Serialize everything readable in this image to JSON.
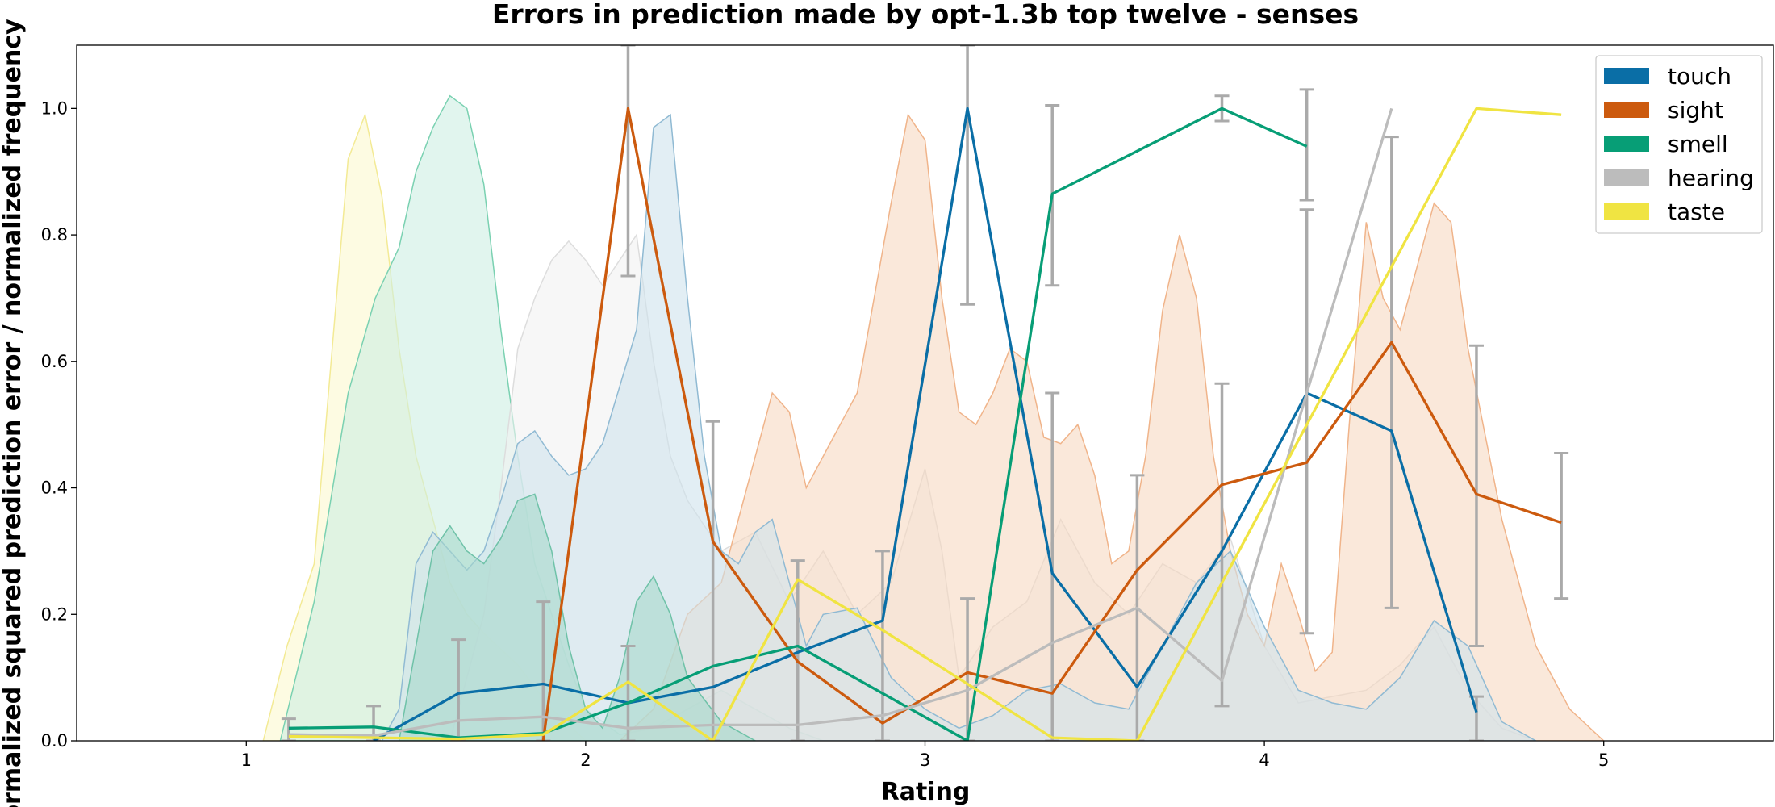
{
  "chart_data": {
    "type": "line",
    "title": "Errors in prediction made by opt-1.3b top twelve - senses",
    "xlabel": "Rating",
    "ylabel": "Normalized squared prediction error / normalized frequency",
    "xlim": [
      0.5,
      5.5
    ],
    "ylim": [
      0,
      1.1
    ],
    "xticks": [
      "1",
      "2",
      "3",
      "4",
      "5"
    ],
    "yticks": [
      "0.0",
      "0.2",
      "0.4",
      "0.6",
      "0.8",
      "1.0"
    ],
    "legend_position": "top-right",
    "grid": false,
    "series": [
      {
        "name": "touch",
        "color": "#0a6ea6",
        "x": [
          1.375,
          1.625,
          1.875,
          2.125,
          2.375,
          2.625,
          2.875,
          3.125,
          3.375,
          3.625,
          3.875,
          4.125,
          4.375,
          4.625
        ],
        "y": [
          0.0,
          0.075,
          0.09,
          0.06,
          0.085,
          0.14,
          0.19,
          1.0,
          0.265,
          0.085,
          0.3,
          0.55,
          0.49,
          0.045
        ]
      },
      {
        "name": "sight",
        "color": "#cc5a0e",
        "x": [
          1.875,
          2.125,
          2.375,
          2.625,
          2.875,
          3.125,
          3.375,
          3.625,
          3.875,
          4.125,
          4.375,
          4.625,
          4.875
        ],
        "y": [
          0.0,
          1.0,
          0.315,
          0.125,
          0.028,
          0.108,
          0.075,
          0.27,
          0.405,
          0.44,
          0.63,
          0.39,
          0.345
        ]
      },
      {
        "name": "smell",
        "color": "#079e76",
        "x": [
          1.125,
          1.375,
          1.625,
          1.875,
          2.125,
          2.375,
          2.625,
          2.875,
          3.125,
          3.375,
          3.875,
          4.125
        ],
        "y": [
          0.02,
          0.022,
          0.005,
          0.012,
          0.06,
          0.118,
          0.15,
          0.075,
          0.0,
          0.865,
          1.0,
          0.94
        ]
      },
      {
        "name": "hearing",
        "color": "#bcbcbc",
        "x": [
          1.125,
          1.375,
          1.625,
          1.875,
          2.125,
          2.375,
          2.625,
          2.875,
          3.125,
          3.375,
          3.625,
          3.875,
          4.125,
          4.375
        ],
        "y": [
          0.01,
          0.008,
          0.032,
          0.038,
          0.02,
          0.025,
          0.025,
          0.04,
          0.08,
          0.155,
          0.21,
          0.095,
          0.55,
          1.0
        ]
      },
      {
        "name": "taste",
        "color": "#f0e442",
        "x": [
          1.125,
          1.375,
          1.625,
          1.875,
          2.125,
          2.375,
          2.625,
          2.875,
          3.125,
          3.375,
          3.625,
          3.875,
          4.125,
          4.375,
          4.625,
          4.875
        ],
        "y": [
          0.007,
          0.005,
          0.003,
          0.01,
          0.093,
          0.0,
          0.255,
          0.175,
          0.09,
          0.005,
          0.0,
          0.25,
          0.5,
          0.75,
          1.0,
          0.99
        ]
      }
    ],
    "error_bars": {
      "color": "#aaaaaa",
      "items": [
        {
          "x": 1.125,
          "low": 0.0,
          "high": 0.035
        },
        {
          "x": 1.375,
          "low": 0.0,
          "high": 0.055
        },
        {
          "x": 1.625,
          "low": 0.0,
          "high": 0.16
        },
        {
          "x": 1.875,
          "low": 0.0,
          "high": 0.22
        },
        {
          "x": 2.125,
          "low": 0.0,
          "high": 0.15
        },
        {
          "x": 2.125,
          "low": 0.735,
          "high": 1.1
        },
        {
          "x": 2.375,
          "low": 0.0,
          "high": 0.505
        },
        {
          "x": 2.625,
          "low": 0.0,
          "high": 0.285
        },
        {
          "x": 2.875,
          "low": 0.0,
          "high": 0.3
        },
        {
          "x": 3.125,
          "low": 0.0,
          "high": 0.225
        },
        {
          "x": 3.125,
          "low": 0.69,
          "high": 1.1
        },
        {
          "x": 3.375,
          "low": 0.72,
          "high": 1.005
        },
        {
          "x": 3.375,
          "low": 0.0,
          "high": 0.55
        },
        {
          "x": 3.625,
          "low": 0.0,
          "high": 0.42
        },
        {
          "x": 3.875,
          "low": 0.98,
          "high": 1.02
        },
        {
          "x": 3.875,
          "low": 0.055,
          "high": 0.565
        },
        {
          "x": 4.125,
          "low": 0.855,
          "high": 1.03
        },
        {
          "x": 4.125,
          "low": 0.17,
          "high": 0.84
        },
        {
          "x": 4.375,
          "low": 0.21,
          "high": 0.955
        },
        {
          "x": 4.625,
          "low": 0.15,
          "high": 0.625
        },
        {
          "x": 4.625,
          "low": 0.0,
          "high": 0.07
        },
        {
          "x": 4.875,
          "low": 0.225,
          "high": 0.455
        }
      ]
    },
    "distributions": [
      {
        "name": "taste",
        "fill": "#fbf9cf",
        "edge": "#f3ea95",
        "points": [
          [
            1.05,
            0
          ],
          [
            1.12,
            0.15
          ],
          [
            1.2,
            0.28
          ],
          [
            1.25,
            0.6
          ],
          [
            1.3,
            0.92
          ],
          [
            1.35,
            0.99
          ],
          [
            1.4,
            0.86
          ],
          [
            1.45,
            0.62
          ],
          [
            1.5,
            0.45
          ],
          [
            1.55,
            0.35
          ],
          [
            1.6,
            0.25
          ],
          [
            1.65,
            0.2
          ],
          [
            1.7,
            0.17
          ],
          [
            1.8,
            0.12
          ],
          [
            1.9,
            0.05
          ],
          [
            2.0,
            0
          ]
        ]
      },
      {
        "name": "smell",
        "fill": "#cdeee3",
        "edge": "#7ad1b1",
        "points": [
          [
            1.1,
            0
          ],
          [
            1.2,
            0.22
          ],
          [
            1.3,
            0.55
          ],
          [
            1.38,
            0.7
          ],
          [
            1.45,
            0.78
          ],
          [
            1.5,
            0.9
          ],
          [
            1.55,
            0.97
          ],
          [
            1.6,
            1.02
          ],
          [
            1.65,
            1.0
          ],
          [
            1.7,
            0.88
          ],
          [
            1.75,
            0.65
          ],
          [
            1.8,
            0.45
          ],
          [
            1.85,
            0.28
          ],
          [
            1.9,
            0.2
          ],
          [
            1.95,
            0.12
          ],
          [
            2.0,
            0.05
          ],
          [
            2.1,
            0.01
          ],
          [
            2.2,
            0.02
          ],
          [
            2.3,
            0.05
          ],
          [
            2.4,
            0.08
          ],
          [
            2.5,
            0.05
          ],
          [
            2.6,
            0.02
          ],
          [
            2.7,
            0
          ]
        ]
      },
      {
        "name": "hearing",
        "fill": "#f1f1f1",
        "edge": "#dddddd",
        "points": [
          [
            1.6,
            0
          ],
          [
            1.7,
            0.2
          ],
          [
            1.75,
            0.4
          ],
          [
            1.8,
            0.62
          ],
          [
            1.85,
            0.7
          ],
          [
            1.9,
            0.76
          ],
          [
            1.95,
            0.79
          ],
          [
            2.0,
            0.76
          ],
          [
            2.05,
            0.72
          ],
          [
            2.1,
            0.76
          ],
          [
            2.15,
            0.8
          ],
          [
            2.2,
            0.6
          ],
          [
            2.25,
            0.45
          ],
          [
            2.3,
            0.38
          ],
          [
            2.4,
            0.3
          ],
          [
            2.5,
            0.33
          ],
          [
            2.6,
            0.22
          ],
          [
            2.7,
            0.3
          ],
          [
            2.8,
            0.2
          ],
          [
            2.9,
            0.25
          ],
          [
            3.0,
            0.43
          ],
          [
            3.05,
            0.3
          ],
          [
            3.1,
            0.1
          ],
          [
            3.2,
            0.18
          ],
          [
            3.3,
            0.22
          ],
          [
            3.4,
            0.35
          ],
          [
            3.5,
            0.25
          ],
          [
            3.6,
            0.2
          ],
          [
            3.7,
            0.28
          ],
          [
            3.8,
            0.25
          ],
          [
            3.9,
            0.32
          ],
          [
            4.0,
            0.15
          ],
          [
            4.1,
            0.06
          ],
          [
            4.2,
            0.07
          ],
          [
            4.3,
            0.08
          ],
          [
            4.4,
            0.12
          ],
          [
            4.5,
            0.18
          ],
          [
            4.6,
            0.08
          ],
          [
            4.7,
            0.02
          ],
          [
            4.8,
            0
          ]
        ]
      },
      {
        "name": "sight",
        "fill": "#f7d9c2",
        "edge": "#f0b48a",
        "points": [
          [
            2.1,
            0
          ],
          [
            2.2,
            0.05
          ],
          [
            2.3,
            0.2
          ],
          [
            2.4,
            0.25
          ],
          [
            2.5,
            0.45
          ],
          [
            2.55,
            0.55
          ],
          [
            2.6,
            0.52
          ],
          [
            2.65,
            0.4
          ],
          [
            2.7,
            0.45
          ],
          [
            2.8,
            0.55
          ],
          [
            2.85,
            0.7
          ],
          [
            2.9,
            0.85
          ],
          [
            2.95,
            0.99
          ],
          [
            3.0,
            0.95
          ],
          [
            3.05,
            0.7
          ],
          [
            3.1,
            0.52
          ],
          [
            3.15,
            0.5
          ],
          [
            3.2,
            0.55
          ],
          [
            3.25,
            0.62
          ],
          [
            3.3,
            0.6
          ],
          [
            3.35,
            0.48
          ],
          [
            3.4,
            0.47
          ],
          [
            3.45,
            0.5
          ],
          [
            3.5,
            0.42
          ],
          [
            3.55,
            0.28
          ],
          [
            3.6,
            0.3
          ],
          [
            3.65,
            0.45
          ],
          [
            3.7,
            0.68
          ],
          [
            3.75,
            0.8
          ],
          [
            3.8,
            0.7
          ],
          [
            3.85,
            0.45
          ],
          [
            3.9,
            0.3
          ],
          [
            3.95,
            0.2
          ],
          [
            4.0,
            0.15
          ],
          [
            4.05,
            0.28
          ],
          [
            4.1,
            0.2
          ],
          [
            4.15,
            0.11
          ],
          [
            4.2,
            0.14
          ],
          [
            4.25,
            0.5
          ],
          [
            4.3,
            0.82
          ],
          [
            4.35,
            0.7
          ],
          [
            4.4,
            0.65
          ],
          [
            4.45,
            0.75
          ],
          [
            4.5,
            0.85
          ],
          [
            4.55,
            0.82
          ],
          [
            4.6,
            0.62
          ],
          [
            4.7,
            0.35
          ],
          [
            4.8,
            0.15
          ],
          [
            4.9,
            0.05
          ],
          [
            5.0,
            0
          ]
        ]
      },
      {
        "name": "touch",
        "fill": "#cfe2ec",
        "edge": "#90bad3",
        "points": [
          [
            1.4,
            0
          ],
          [
            1.45,
            0.05
          ],
          [
            1.5,
            0.28
          ],
          [
            1.55,
            0.33
          ],
          [
            1.6,
            0.3
          ],
          [
            1.65,
            0.27
          ],
          [
            1.7,
            0.3
          ],
          [
            1.75,
            0.38
          ],
          [
            1.8,
            0.47
          ],
          [
            1.85,
            0.49
          ],
          [
            1.9,
            0.45
          ],
          [
            1.95,
            0.42
          ],
          [
            2.0,
            0.43
          ],
          [
            2.05,
            0.47
          ],
          [
            2.1,
            0.56
          ],
          [
            2.15,
            0.65
          ],
          [
            2.2,
            0.97
          ],
          [
            2.25,
            0.99
          ],
          [
            2.3,
            0.7
          ],
          [
            2.35,
            0.45
          ],
          [
            2.4,
            0.3
          ],
          [
            2.45,
            0.28
          ],
          [
            2.5,
            0.33
          ],
          [
            2.55,
            0.35
          ],
          [
            2.6,
            0.25
          ],
          [
            2.65,
            0.15
          ],
          [
            2.7,
            0.2
          ],
          [
            2.8,
            0.21
          ],
          [
            2.9,
            0.1
          ],
          [
            3.0,
            0.05
          ],
          [
            3.1,
            0.02
          ],
          [
            3.2,
            0.04
          ],
          [
            3.3,
            0.08
          ],
          [
            3.4,
            0.09
          ],
          [
            3.5,
            0.06
          ],
          [
            3.6,
            0.05
          ],
          [
            3.7,
            0.15
          ],
          [
            3.8,
            0.25
          ],
          [
            3.9,
            0.3
          ],
          [
            4.0,
            0.18
          ],
          [
            4.1,
            0.08
          ],
          [
            4.2,
            0.06
          ],
          [
            4.3,
            0.05
          ],
          [
            4.4,
            0.1
          ],
          [
            4.5,
            0.19
          ],
          [
            4.6,
            0.15
          ],
          [
            4.7,
            0.03
          ],
          [
            4.8,
            0
          ]
        ]
      },
      {
        "name": "smell",
        "fill": "#a7d9cc",
        "edge": "#6fc2a8",
        "points": [
          [
            1.45,
            0
          ],
          [
            1.5,
            0.15
          ],
          [
            1.55,
            0.3
          ],
          [
            1.6,
            0.34
          ],
          [
            1.65,
            0.3
          ],
          [
            1.7,
            0.28
          ],
          [
            1.75,
            0.32
          ],
          [
            1.8,
            0.38
          ],
          [
            1.85,
            0.39
          ],
          [
            1.9,
            0.3
          ],
          [
            1.95,
            0.15
          ],
          [
            2.0,
            0.05
          ],
          [
            2.05,
            0.02
          ],
          [
            2.1,
            0.1
          ],
          [
            2.15,
            0.22
          ],
          [
            2.2,
            0.26
          ],
          [
            2.25,
            0.2
          ],
          [
            2.3,
            0.1
          ],
          [
            2.4,
            0.03
          ],
          [
            2.5,
            0
          ]
        ]
      }
    ]
  }
}
